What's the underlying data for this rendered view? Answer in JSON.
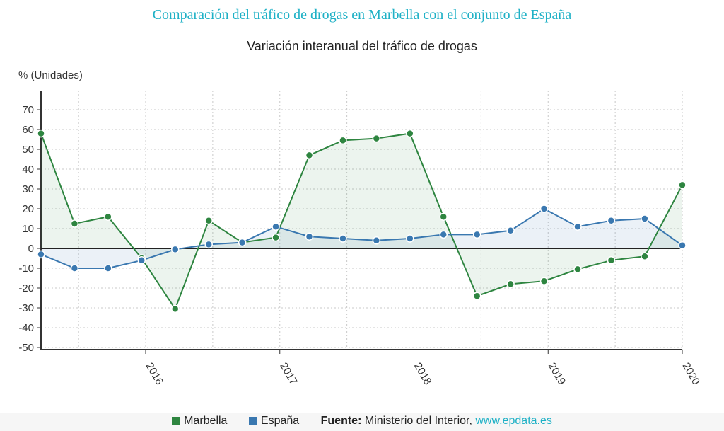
{
  "header": {
    "title": "Comparación del tráfico de drogas en Marbella con el conjunto de España"
  },
  "footer": {
    "source_label": "Fuente:",
    "source_text": "Ministerio del Interior,",
    "source_link": "www.epdata.es"
  },
  "colors": {
    "title": "#1fb1c6",
    "marbella": "#2e8540",
    "espana": "#3a78b0",
    "link": "#1fb1c6"
  },
  "chart_data": {
    "type": "line",
    "title": "Variación interanual del tráfico de drogas",
    "ylabel": "% (Unidades)",
    "xlabel": "",
    "ylim": [
      -50,
      70
    ],
    "yticks": [
      70,
      60,
      50,
      40,
      30,
      20,
      10,
      0,
      -10,
      -20,
      -30,
      -40,
      -50
    ],
    "xlim": [
      2015.22,
      2020.0
    ],
    "xticks": [
      "2016",
      "2017",
      "2018",
      "2019",
      "2020"
    ],
    "grid": true,
    "legend_position": "bottom",
    "x": [
      2015.22,
      2015.47,
      2015.72,
      2015.97,
      2016.22,
      2016.47,
      2016.72,
      2016.97,
      2017.22,
      2017.47,
      2017.72,
      2017.97,
      2018.22,
      2018.47,
      2018.72,
      2018.97,
      2019.22,
      2019.47,
      2019.72,
      2020.0
    ],
    "series": [
      {
        "name": "Marbella",
        "color": "#2e8540",
        "values": [
          58,
          12.5,
          16,
          -5,
          -30.5,
          14,
          3,
          5.5,
          47,
          54.5,
          55.5,
          58,
          16,
          -24,
          -18,
          -16.5,
          -10.5,
          -6,
          -4,
          32
        ]
      },
      {
        "name": "España",
        "color": "#3a78b0",
        "values": [
          -3,
          -10,
          -10,
          -6,
          -0.5,
          2,
          3,
          11,
          6,
          5,
          4,
          5,
          7,
          7,
          9,
          20,
          11,
          14,
          15,
          1.5
        ]
      }
    ]
  }
}
